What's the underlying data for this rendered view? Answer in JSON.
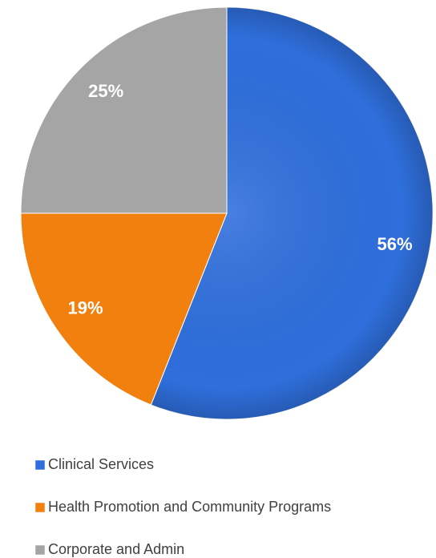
{
  "chart_data": {
    "type": "pie",
    "categories": [
      "Clinical Services",
      "Health Promotion and Community Programs",
      "Corporate and Admin"
    ],
    "values": [
      56,
      19,
      25
    ],
    "value_labels": [
      "56%",
      "19%",
      "25%"
    ],
    "colors": [
      "#2f6fdc",
      "#f2800f",
      "#a5a5a5"
    ],
    "legend": "bottom"
  }
}
